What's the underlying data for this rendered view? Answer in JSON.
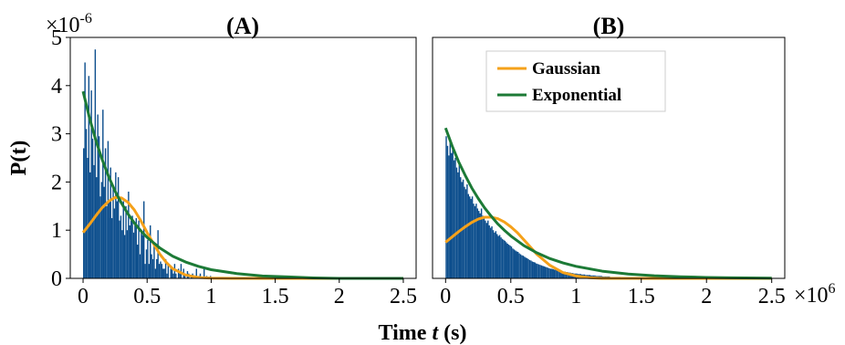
{
  "chart_data": [
    {
      "type": "bar",
      "title": "(A)",
      "ylabel": "P(t)",
      "xlim": [
        -0.1,
        2.6
      ],
      "ylim": [
        0,
        5
      ],
      "x_ticks": [
        0,
        0.5,
        1,
        1.5,
        2,
        2.5
      ],
      "x_tick_labels": [
        "0",
        "0.5",
        "1",
        "1.5",
        "2",
        "2.5"
      ],
      "y_ticks": [
        0,
        1,
        2,
        3,
        4,
        5
      ],
      "y_tick_labels": [
        "0",
        "1",
        "2",
        "3",
        "4",
        "5"
      ],
      "y_multiplier": {
        "base": "×10",
        "exp": "-6"
      },
      "histogram": {
        "bin_width": 0.01,
        "values": [
          2.7,
          4.48,
          3.1,
          2.5,
          4.2,
          2.2,
          3.9,
          2.9,
          2.35,
          4.75,
          2.1,
          3.4,
          2.95,
          1.7,
          2.0,
          3.5,
          1.9,
          2.7,
          1.5,
          2.85,
          1.6,
          2.3,
          1.25,
          1.9,
          1.45,
          2.2,
          1.6,
          2.1,
          1.2,
          1.3,
          1.0,
          1.6,
          0.9,
          1.5,
          1.0,
          1.8,
          1.1,
          1.2,
          1.3,
          0.95,
          1.1,
          1.25,
          0.7,
          1.2,
          0.5,
          1.0,
          0.9,
          1.6,
          0.3,
          0.6,
          0.8,
          0.3,
          1.1,
          0.5,
          0.4,
          0.7,
          0.2,
          0.4,
          1.0,
          0.3,
          0.35,
          0.3,
          0.2,
          0.2,
          0.4,
          0.1,
          0.3,
          0.0,
          0.2,
          0.2,
          0.1,
          0.3,
          0.1,
          0.0,
          0.2,
          0.1,
          0.3,
          0.0,
          0.2,
          0.1,
          0.0,
          0.15,
          0.1,
          0.0,
          0.05,
          0.1,
          0.0,
          0.05,
          0.2,
          0.0,
          0.05,
          0.1,
          0.0,
          0.0,
          0.2,
          0.0,
          0.05,
          0.0,
          0.0,
          0.05,
          0.0,
          0.0,
          0.0,
          0.0,
          0.0,
          0.0,
          0.0,
          0.0,
          0.0,
          0.0,
          0.0,
          0.0,
          0.0,
          0.0,
          0.0,
          0.0,
          0.0,
          0.0,
          0.0,
          0.0,
          0.0,
          0.0,
          0.0,
          0.0,
          0.0,
          0.0,
          0.0,
          0.0,
          0.0,
          0.0,
          0.0,
          0.0,
          0.0,
          0.0,
          0.0,
          0.0,
          0.0,
          0.0,
          0.0,
          0.0,
          0.0,
          0.0,
          0.0,
          0.0,
          0.0,
          0.0,
          0.0,
          0.0
        ],
        "color": "#0b4d8c"
      },
      "series": [
        {
          "name": "Gaussian",
          "color": "#f5a11a",
          "points": [
            [
              0,
              0.95
            ],
            [
              0.05,
              1.12
            ],
            [
              0.1,
              1.3
            ],
            [
              0.15,
              1.47
            ],
            [
              0.2,
              1.6
            ],
            [
              0.25,
              1.68
            ],
            [
              0.3,
              1.67
            ],
            [
              0.35,
              1.58
            ],
            [
              0.4,
              1.42
            ],
            [
              0.45,
              1.2
            ],
            [
              0.5,
              0.95
            ],
            [
              0.55,
              0.72
            ],
            [
              0.6,
              0.5
            ],
            [
              0.65,
              0.33
            ],
            [
              0.7,
              0.2
            ],
            [
              0.8,
              0.07
            ],
            [
              0.9,
              0.02
            ],
            [
              1.0,
              0.005
            ],
            [
              1.2,
              0.0
            ],
            [
              2.5,
              0.0
            ]
          ]
        },
        {
          "name": "Exponential",
          "color": "#1c7a36",
          "points": [
            [
              0,
              3.88
            ],
            [
              0.05,
              3.33
            ],
            [
              0.1,
              2.86
            ],
            [
              0.15,
              2.46
            ],
            [
              0.2,
              2.11
            ],
            [
              0.25,
              1.81
            ],
            [
              0.3,
              1.56
            ],
            [
              0.35,
              1.34
            ],
            [
              0.4,
              1.15
            ],
            [
              0.45,
              0.99
            ],
            [
              0.5,
              0.85
            ],
            [
              0.6,
              0.63
            ],
            [
              0.7,
              0.46
            ],
            [
              0.8,
              0.34
            ],
            [
              0.9,
              0.25
            ],
            [
              1.0,
              0.18
            ],
            [
              1.2,
              0.1
            ],
            [
              1.4,
              0.05
            ],
            [
              1.6,
              0.03
            ],
            [
              1.8,
              0.01
            ],
            [
              2.0,
              0.0
            ],
            [
              2.5,
              0.0
            ]
          ]
        }
      ]
    },
    {
      "type": "bar",
      "title": "(B)",
      "xlim": [
        -0.1,
        2.6
      ],
      "ylim": [
        0,
        5
      ],
      "x_ticks": [
        0,
        0.5,
        1,
        1.5,
        2,
        2.5
      ],
      "x_tick_labels": [
        "0",
        "0.5",
        "1",
        "1.5",
        "2",
        "2.5"
      ],
      "x_multiplier": {
        "base": "×10",
        "exp": "6"
      },
      "legend": {
        "position": "top-right",
        "entries": [
          "Gaussian",
          "Exponential"
        ]
      },
      "histogram": {
        "bin_width": 0.01,
        "values": [
          2.95,
          2.75,
          2.55,
          2.85,
          2.6,
          2.7,
          2.45,
          2.5,
          2.3,
          2.2,
          2.35,
          2.1,
          2.0,
          2.05,
          1.9,
          1.85,
          1.95,
          1.75,
          1.7,
          1.65,
          1.7,
          1.55,
          1.5,
          1.55,
          1.45,
          1.4,
          1.35,
          1.45,
          1.3,
          1.25,
          1.2,
          1.15,
          1.2,
          1.1,
          1.05,
          1.08,
          1.0,
          0.95,
          0.98,
          0.92,
          0.88,
          0.9,
          0.85,
          0.82,
          0.8,
          0.78,
          0.75,
          0.72,
          0.7,
          0.68,
          0.66,
          0.62,
          0.6,
          0.58,
          0.56,
          0.55,
          0.52,
          0.5,
          0.48,
          0.47,
          0.45,
          0.43,
          0.42,
          0.4,
          0.38,
          0.37,
          0.35,
          0.34,
          0.33,
          0.31,
          0.3,
          0.29,
          0.28,
          0.27,
          0.26,
          0.25,
          0.24,
          0.23,
          0.22,
          0.21,
          0.2,
          0.2,
          0.19,
          0.18,
          0.18,
          0.17,
          0.16,
          0.16,
          0.15,
          0.15,
          0.14,
          0.14,
          0.13,
          0.13,
          0.12,
          0.12,
          0.11,
          0.11,
          0.1,
          0.1,
          0.1,
          0.09,
          0.09,
          0.09,
          0.08,
          0.08,
          0.08,
          0.07,
          0.07,
          0.07,
          0.07,
          0.06,
          0.06,
          0.06,
          0.06,
          0.05,
          0.05,
          0.05,
          0.05,
          0.05,
          0.04,
          0.04,
          0.04,
          0.04,
          0.04,
          0.04,
          0.03,
          0.03,
          0.03,
          0.03,
          0.03,
          0.03,
          0.03,
          0.03,
          0.02,
          0.02,
          0.02,
          0.02,
          0.02,
          0.02,
          0.02,
          0.02,
          0.02,
          0.02,
          0.02,
          0.02,
          0.02,
          0.02,
          0.01,
          0.01,
          0.01,
          0.01,
          0.01,
          0.01,
          0.01,
          0.01,
          0.01,
          0.01,
          0.01,
          0.01,
          0.01,
          0.01,
          0.01,
          0.01,
          0.01,
          0.01,
          0.01,
          0.01,
          0.01,
          0.01,
          0.01,
          0.01,
          0.01,
          0.01,
          0.01,
          0.01,
          0.01,
          0.01,
          0.01,
          0.01,
          0.01,
          0.01,
          0.01,
          0.01,
          0.01,
          0.01,
          0.01,
          0.01,
          0.01,
          0.01,
          0.01,
          0.01,
          0.01,
          0.01,
          0.01,
          0.01,
          0.01,
          0.01,
          0.01,
          0.01,
          0.01,
          0.01,
          0.01,
          0.01,
          0.01,
          0.01,
          0.01,
          0.01,
          0.01,
          0.01,
          0.01,
          0.01,
          0.01,
          0.01,
          0.01,
          0.01,
          0.01,
          0.01,
          0.01,
          0.01,
          0.01,
          0.01,
          0.01,
          0.01,
          0.01,
          0.01,
          0.01,
          0.01,
          0.01,
          0.01,
          0.01,
          0.01,
          0.01,
          0.01,
          0.01,
          0.01,
          0.01,
          0.01,
          0.01,
          0.01,
          0.01,
          0.01,
          0.01,
          0.01,
          0.01,
          0.01,
          0.01,
          0.01,
          0.01,
          0.01,
          0.01,
          0.01,
          0.01,
          0.01,
          0.01,
          0.01
        ],
        "color": "#0b4d8c"
      },
      "series": [
        {
          "name": "Gaussian",
          "color": "#f5a11a",
          "points": [
            [
              0,
              0.75
            ],
            [
              0.05,
              0.86
            ],
            [
              0.1,
              0.97
            ],
            [
              0.15,
              1.07
            ],
            [
              0.2,
              1.16
            ],
            [
              0.25,
              1.23
            ],
            [
              0.3,
              1.27
            ],
            [
              0.35,
              1.27
            ],
            [
              0.4,
              1.24
            ],
            [
              0.45,
              1.17
            ],
            [
              0.5,
              1.07
            ],
            [
              0.55,
              0.95
            ],
            [
              0.6,
              0.8
            ],
            [
              0.65,
              0.65
            ],
            [
              0.7,
              0.5
            ],
            [
              0.8,
              0.27
            ],
            [
              0.9,
              0.12
            ],
            [
              1.0,
              0.05
            ],
            [
              1.1,
              0.015
            ],
            [
              1.2,
              0.0
            ],
            [
              2.5,
              0.0
            ]
          ]
        },
        {
          "name": "Exponential",
          "color": "#1c7a36",
          "points": [
            [
              0,
              3.12
            ],
            [
              0.05,
              2.75
            ],
            [
              0.1,
              2.42
            ],
            [
              0.15,
              2.14
            ],
            [
              0.2,
              1.88
            ],
            [
              0.25,
              1.66
            ],
            [
              0.3,
              1.46
            ],
            [
              0.35,
              1.29
            ],
            [
              0.4,
              1.13
            ],
            [
              0.45,
              1.0
            ],
            [
              0.5,
              0.88
            ],
            [
              0.6,
              0.68
            ],
            [
              0.7,
              0.53
            ],
            [
              0.8,
              0.41
            ],
            [
              0.9,
              0.32
            ],
            [
              1.0,
              0.25
            ],
            [
              1.2,
              0.15
            ],
            [
              1.4,
              0.09
            ],
            [
              1.6,
              0.055
            ],
            [
              1.8,
              0.033
            ],
            [
              2.0,
              0.02
            ],
            [
              2.2,
              0.012
            ],
            [
              2.5,
              0.005
            ]
          ]
        }
      ]
    }
  ],
  "shared": {
    "xlabel_prefix": "Time ",
    "xlabel_var": "t",
    "xlabel_suffix": " (s)"
  }
}
